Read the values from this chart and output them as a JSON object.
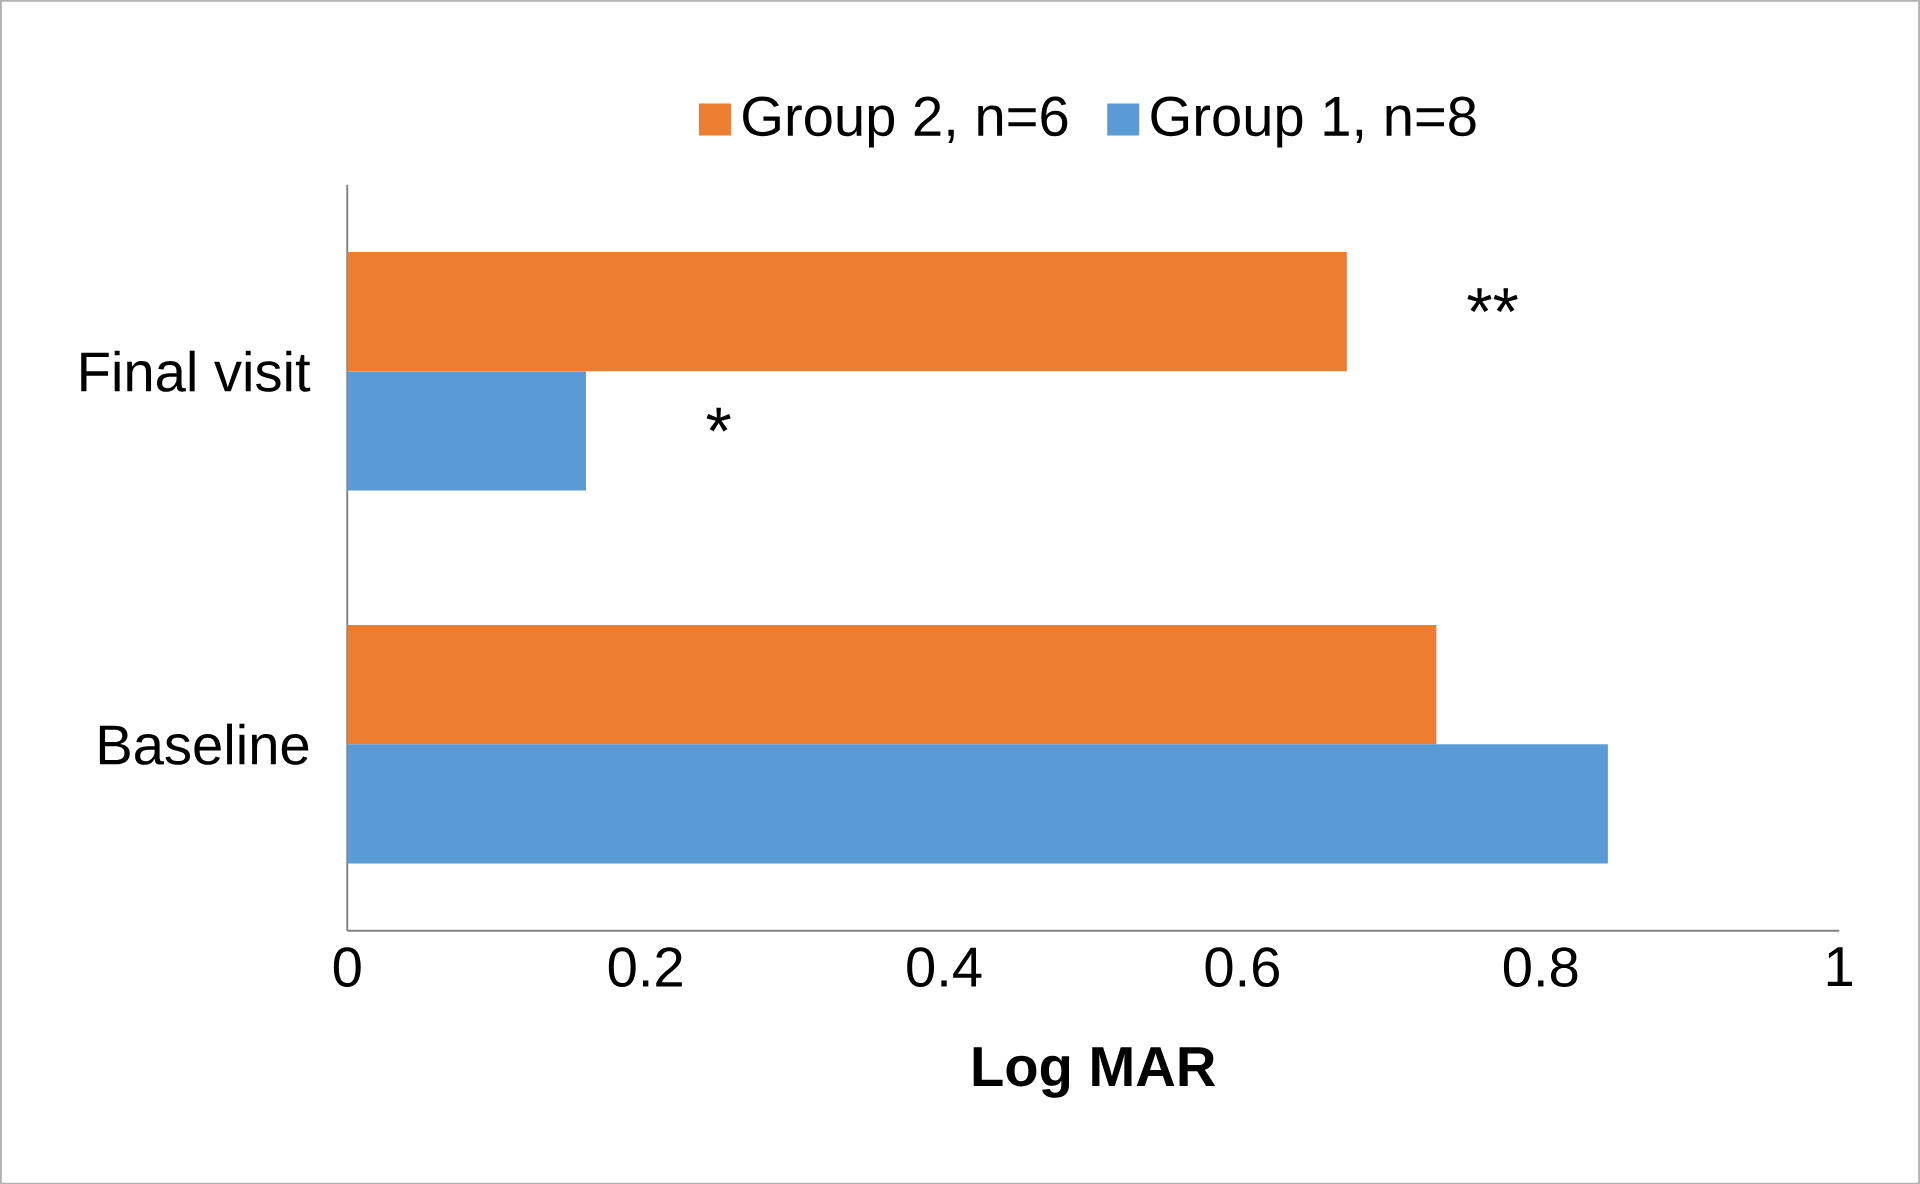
{
  "chart_data": {
    "type": "bar",
    "orientation": "horizontal",
    "xlabel": "Log MAR",
    "categories": [
      "Final visit",
      "Baseline"
    ],
    "series": [
      {
        "name": "Group 2, n=6",
        "color": "#ed7d31",
        "values": [
          0.67,
          0.73
        ]
      },
      {
        "name": "Group 1, n=8",
        "color": "#5b9bd5",
        "values": [
          0.16,
          0.845
        ]
      }
    ],
    "xlim": [
      0,
      1
    ],
    "xticks": [
      0,
      0.2,
      0.4,
      0.6,
      0.8,
      1
    ],
    "legend": "top",
    "grid": false,
    "annotations": [
      {
        "text": "**",
        "x": 0.67,
        "y": "Final visit"
      },
      {
        "text": "*",
        "x": 0.16,
        "y": "Final visit"
      }
    ]
  }
}
